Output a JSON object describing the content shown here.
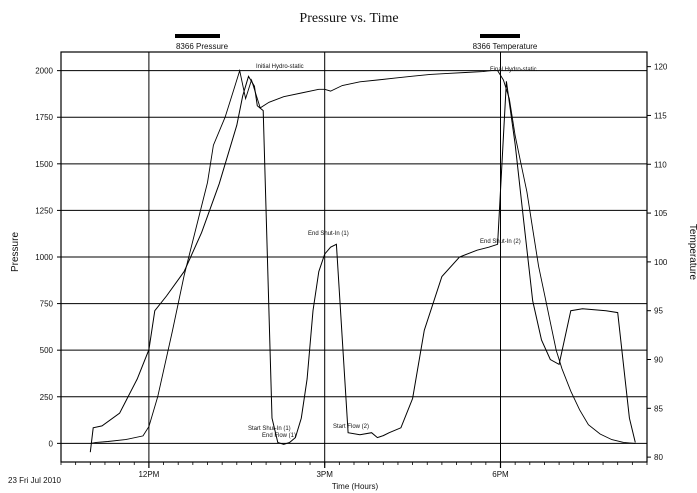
{
  "chart_data": {
    "type": "line",
    "title": "Pressure vs. Time",
    "xlabel": "Time (Hours)",
    "ylabel": "Pressure",
    "y2label": "Temperature",
    "footer_date": "23 Fri Jul 2010",
    "xlim": [
      10.5,
      20.5
    ],
    "ylim": [
      -100,
      2100
    ],
    "y2lim": [
      79.5,
      121.5
    ],
    "x_ticks": [
      {
        "value": 12,
        "label": "12PM"
      },
      {
        "value": 15,
        "label": "3PM"
      },
      {
        "value": 18,
        "label": "6PM"
      }
    ],
    "y_ticks": [
      0,
      250,
      500,
      750,
      1000,
      1250,
      1500,
      1750,
      2000
    ],
    "y_tick_labels": [
      "0",
      "250",
      "500",
      "750",
      "1000",
      "1250",
      "1500",
      "1750",
      "2000"
    ],
    "y2_ticks": [
      80,
      85,
      90,
      95,
      100,
      105,
      110,
      115,
      120
    ],
    "y2_tick_labels": [
      "80",
      "85",
      "90",
      "95",
      "100",
      "105",
      "110",
      "115",
      "120"
    ],
    "grid": true,
    "legend": [
      {
        "label": "8366 Pressure",
        "color": "#000000"
      },
      {
        "label": "8366 Temperature",
        "color": "#000000"
      }
    ],
    "series": [
      {
        "name": "8366 Pressure",
        "axis": "left",
        "x": [
          11.0,
          11.1,
          11.3,
          11.6,
          11.9,
          12.0,
          12.15,
          12.4,
          12.6,
          12.8,
          13.0,
          13.1,
          13.3,
          13.45,
          13.55,
          13.65,
          13.75,
          13.9,
          14.05,
          14.3,
          14.6,
          14.9,
          15.0,
          15.1,
          15.3,
          15.6,
          15.9,
          16.2,
          16.5,
          16.8,
          17.1,
          17.4,
          17.7,
          17.85,
          17.95,
          18.05,
          18.15,
          18.25,
          18.35,
          18.45,
          18.55,
          18.65,
          18.75,
          18.85,
          18.95,
          19.05,
          19.2,
          19.35,
          19.5,
          19.7,
          19.9,
          20.1,
          20.3
        ],
        "y": [
          0,
          5,
          10,
          20,
          40,
          90,
          250,
          600,
          900,
          1150,
          1400,
          1600,
          1750,
          1900,
          2000,
          1850,
          1950,
          1800,
          1830,
          1860,
          1880,
          1900,
          1900,
          1890,
          1920,
          1940,
          1950,
          1960,
          1970,
          1980,
          1985,
          1990,
          1995,
          2000,
          2000,
          1950,
          1850,
          1650,
          1500,
          1350,
          1150,
          950,
          800,
          650,
          500,
          400,
          280,
          180,
          100,
          50,
          20,
          5,
          0
        ]
      },
      {
        "name": "8366 Temperature",
        "axis": "right",
        "x": [
          11.0,
          11.05,
          11.2,
          11.5,
          11.8,
          12.0,
          12.1,
          12.3,
          12.6,
          12.9,
          13.2,
          13.5,
          13.6,
          13.7,
          13.8,
          13.85,
          13.95,
          14.1,
          14.2,
          14.3,
          14.4,
          14.5,
          14.6,
          14.7,
          14.8,
          14.9,
          15.0,
          15.1,
          15.2,
          15.4,
          15.6,
          15.8,
          15.9,
          16.0,
          16.1,
          16.3,
          16.5,
          16.7,
          17.0,
          17.3,
          17.6,
          17.8,
          17.95,
          18.1,
          18.25,
          18.4,
          18.55,
          18.7,
          18.85,
          19.0,
          19.2,
          19.4,
          19.6,
          19.8,
          20.0,
          20.2,
          20.3
        ],
        "y": [
          80.5,
          83.0,
          83.2,
          84.5,
          88.0,
          91.0,
          95.0,
          96.5,
          99.0,
          103.0,
          108.0,
          114.0,
          117.0,
          119.0,
          118.0,
          116.0,
          115.5,
          84.0,
          81.5,
          81.3,
          81.5,
          82.0,
          84.0,
          88.0,
          95.0,
          99.0,
          100.8,
          101.5,
          101.8,
          82.5,
          82.3,
          82.5,
          82.0,
          82.2,
          82.5,
          83.0,
          86.0,
          93.0,
          98.5,
          100.5,
          101.2,
          101.5,
          101.8,
          118.5,
          112.0,
          104.0,
          96.0,
          92.0,
          90.0,
          89.5,
          95.0,
          95.2,
          95.1,
          95.0,
          94.8,
          84.0,
          81.5
        ]
      }
    ],
    "annotations": [
      {
        "text": "Initial Hydro-static"
      },
      {
        "text": "Final Hydro-static"
      },
      {
        "text": "End Shut-In (1)"
      },
      {
        "text": "End Shut-In (2)"
      },
      {
        "text": "Start Shut-In (1)"
      },
      {
        "text": "End Flow (1)"
      },
      {
        "text": "Start Flow (2)"
      }
    ]
  }
}
